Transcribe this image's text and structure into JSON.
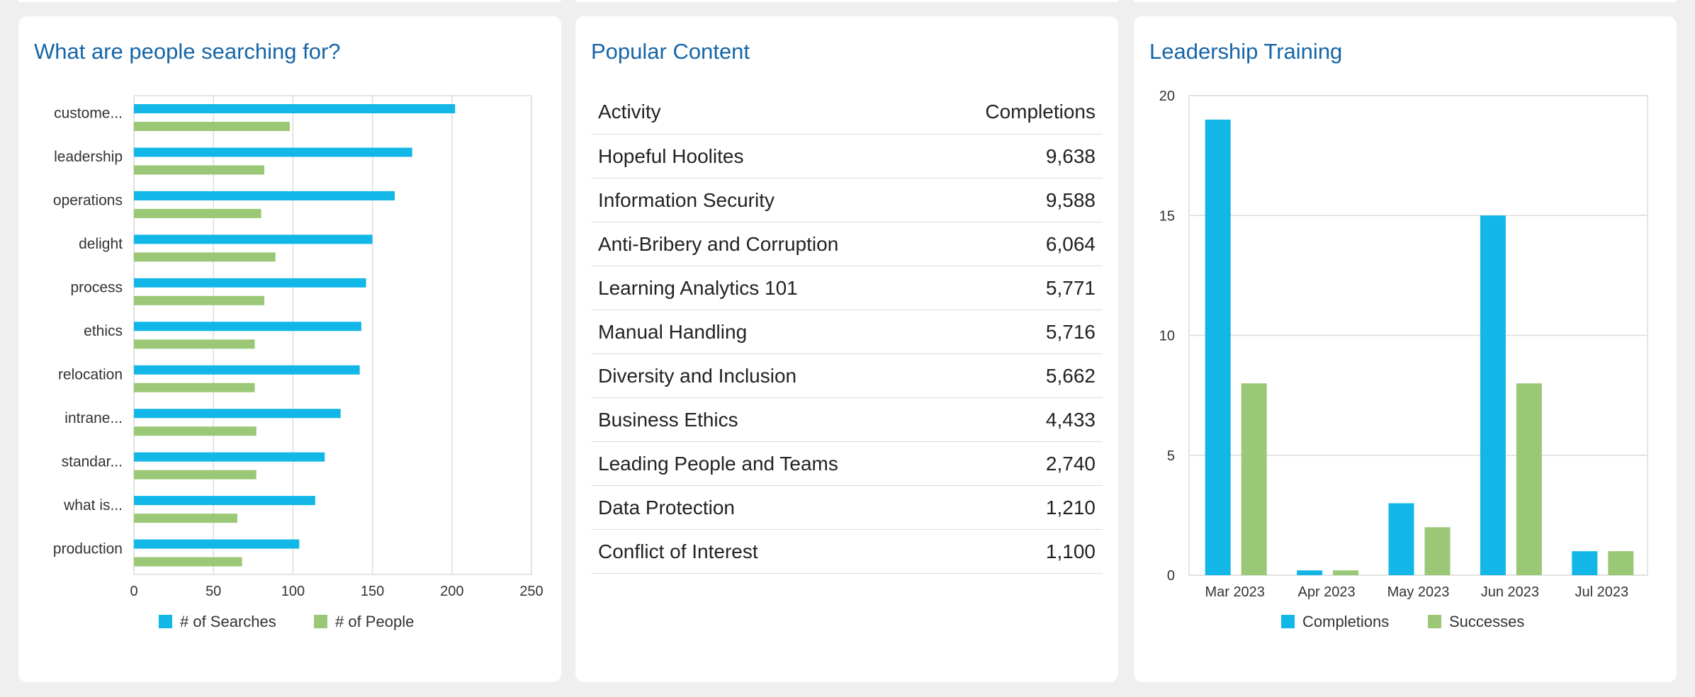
{
  "search_card": {
    "title": "What are people searching for?",
    "legend": [
      "# of Searches",
      "# of People"
    ]
  },
  "content_card": {
    "title": "Popular Content",
    "columns": [
      "Activity",
      "Completions"
    ],
    "rows": [
      {
        "activity": "Hopeful Hoolites",
        "completions": "9,638"
      },
      {
        "activity": "Information Security",
        "completions": "9,588"
      },
      {
        "activity": "Anti-Bribery and Corruption",
        "completions": "6,064"
      },
      {
        "activity": "Learning Analytics 101",
        "completions": "5,771"
      },
      {
        "activity": "Manual Handling",
        "completions": "5,716"
      },
      {
        "activity": "Diversity and Inclusion",
        "completions": "5,662"
      },
      {
        "activity": "Business Ethics",
        "completions": "4,433"
      },
      {
        "activity": "Leading People and Teams",
        "completions": "2,740"
      },
      {
        "activity": "Data Protection",
        "completions": "1,210"
      },
      {
        "activity": "Conflict of Interest",
        "completions": "1,100"
      }
    ]
  },
  "training_card": {
    "title": "Leadership Training",
    "legend": [
      "Completions",
      "Successes"
    ]
  },
  "colors": {
    "blue": "#12b7e8",
    "green": "#9bc876",
    "title": "#1565a8"
  },
  "chart_data": [
    {
      "type": "bar",
      "orientation": "horizontal",
      "categories": [
        "custome...",
        "leadership",
        "operations",
        "delight",
        "process",
        "ethics",
        "relocation",
        "intrane...",
        "standar...",
        "what is...",
        "production"
      ],
      "series": [
        {
          "name": "# of Searches",
          "values": [
            202,
            175,
            164,
            150,
            146,
            143,
            142,
            130,
            120,
            114,
            104
          ]
        },
        {
          "name": "# of People",
          "values": [
            98,
            82,
            80,
            89,
            82,
            76,
            76,
            77,
            77,
            65,
            68
          ]
        }
      ],
      "ticks": [
        "0",
        "50",
        "100",
        "150",
        "200",
        "250"
      ],
      "xlim": [
        0,
        250
      ],
      "grid": true,
      "legend": "bottom"
    },
    {
      "type": "bar",
      "categories": [
        "Mar 2023",
        "Apr 2023",
        "May 2023",
        "Jun 2023",
        "Jul 2023"
      ],
      "series": [
        {
          "name": "Completions",
          "values": [
            19,
            0.2,
            3,
            15,
            1
          ]
        },
        {
          "name": "Successes",
          "values": [
            8,
            0.2,
            2,
            8,
            1
          ]
        }
      ],
      "ticks": [
        "0",
        "5",
        "10",
        "15",
        "20"
      ],
      "ylim": [
        0,
        20
      ],
      "grid": true,
      "legend": "bottom"
    }
  ]
}
